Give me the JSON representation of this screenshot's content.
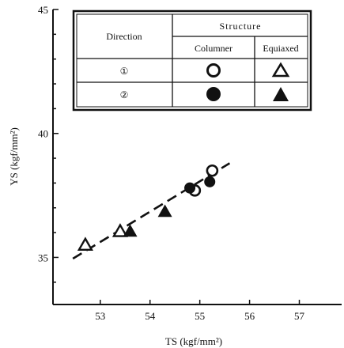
{
  "chart_data": {
    "type": "scatter",
    "xlabel": "TS (kgf/mm²)",
    "ylabel": "YS (kgf/mm²)",
    "xlim": [
      52.05,
      57.85
    ],
    "ylim": [
      33.1,
      45.0
    ],
    "x_ticks": [
      53,
      54,
      55,
      56,
      57
    ],
    "y_ticks": [
      35,
      40,
      45
    ],
    "grid": false,
    "legend": {
      "placement": "top-left",
      "header_direction": "Direction",
      "header_structure": "Structure",
      "col_columnar": "Columner",
      "col_equiaxed": "Equiaxed",
      "row1_label": "①",
      "row2_label": "②"
    },
    "series": [
      {
        "name": "Direction ① Columner",
        "marker": "circle-open",
        "x": [
          54.9,
          55.25
        ],
        "y": [
          37.7,
          38.5
        ]
      },
      {
        "name": "Direction ② Columner",
        "marker": "circle-filled",
        "x": [
          54.8,
          55.2
        ],
        "y": [
          37.8,
          38.05
        ]
      },
      {
        "name": "Direction ① Equiaxed",
        "marker": "triangle-open",
        "x": [
          52.7,
          53.4
        ],
        "y": [
          35.5,
          36.05
        ]
      },
      {
        "name": "Direction ② Equiaxed",
        "marker": "triangle-filled",
        "x": [
          53.6,
          54.3
        ],
        "y": [
          36.05,
          36.85
        ]
      }
    ],
    "fit_line": {
      "style": "dashed",
      "x": [
        52.45,
        55.6
      ],
      "y": [
        34.95,
        38.8
      ]
    }
  }
}
